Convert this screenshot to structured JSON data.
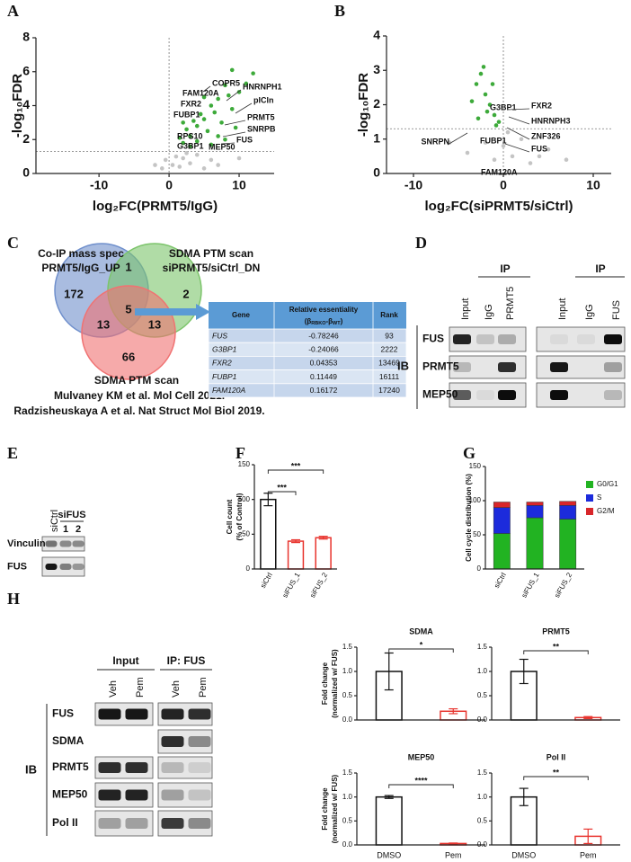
{
  "panel_labels": [
    "A",
    "B",
    "C",
    "D",
    "E",
    "F",
    "G",
    "H"
  ],
  "chart_data": [
    {
      "type": "scatter",
      "xlabel": "log₂FC(PRMT5/IgG)",
      "ylabel": "-log₁₀FDR",
      "xlim": [
        -19,
        15
      ],
      "ylim": [
        0,
        8
      ],
      "xticks": [
        -10,
        0,
        10
      ],
      "yticks": [
        0,
        2,
        4,
        6,
        8
      ],
      "reference_lines": {
        "x": 0,
        "y": 1.3
      },
      "series": [
        {
          "color": "#c4c4c4",
          "x": [
            -1,
            -0.5,
            0.5,
            1,
            1.5,
            2,
            3,
            4,
            5,
            6,
            7,
            10,
            -2,
            2.5
          ],
          "y": [
            0.3,
            0.8,
            0.5,
            1.0,
            0.4,
            0.9,
            0.6,
            1.1,
            0.3,
            0.8,
            0.5,
            0.9,
            0.5,
            1.2
          ]
        },
        {
          "color": "#3daa3a",
          "x": [
            1.5,
            2,
            2.5,
            3,
            3.5,
            4,
            4.5,
            5,
            5.5,
            6,
            6.5,
            7,
            7.5,
            8,
            8.5,
            9,
            9.5,
            10,
            11,
            12,
            3,
            4,
            6,
            7,
            8,
            2,
            5,
            9
          ],
          "y": [
            2.1,
            1.8,
            2.6,
            2.2,
            3.1,
            2.8,
            3.5,
            3.2,
            2.5,
            4.0,
            3.6,
            4.4,
            3.0,
            5.2,
            4.6,
            3.8,
            2.7,
            4.8,
            5.3,
            5.9,
            1.6,
            1.9,
            1.7,
            2.2,
            2.0,
            3.0,
            4.5,
            6.1
          ]
        }
      ],
      "annotations": [
        "COPR5",
        "HNRNPH1",
        "FAM120A",
        "pICln",
        "FXR2",
        "FUBP1",
        "PRMT5",
        "SNRPB",
        "RPS10",
        "FUS",
        "G3BP1",
        "MEP50"
      ]
    },
    {
      "type": "scatter",
      "xlabel": "log₂FC(siPRMT5/siCtrl)",
      "ylabel": "-log₁₀FDR",
      "xlim": [
        -13,
        12
      ],
      "ylim": [
        0,
        4
      ],
      "xticks": [
        -10,
        0,
        10
      ],
      "yticks": [
        0,
        1,
        2,
        3,
        4
      ],
      "reference_lines": {
        "x": 0,
        "y": 1.3
      },
      "series": [
        {
          "color": "#c4c4c4",
          "x": [
            -4,
            -2,
            -1,
            0,
            1,
            2,
            3,
            5,
            -6,
            0.5,
            4,
            7
          ],
          "y": [
            0.6,
            0.9,
            0.4,
            0.8,
            0.5,
            1.0,
            0.3,
            0.7,
            0.9,
            1.2,
            0.5,
            0.4
          ]
        },
        {
          "color": "#3daa3a",
          "x": [
            -3,
            -2.5,
            -2.2,
            -2,
            -1.8,
            -1.5,
            -1,
            -0.5,
            -2.8,
            -3.5,
            -1.2,
            -0.8
          ],
          "y": [
            2.6,
            2.9,
            3.1,
            2.3,
            1.8,
            2.0,
            1.7,
            1.5,
            1.6,
            2.1,
            2.6,
            1.4
          ]
        }
      ],
      "annotations": [
        "SNRPN",
        "G3BP1",
        "FXR2",
        "HNRNPH3",
        "ZNF326",
        "FUBP1",
        "FUS",
        "FAM120A"
      ]
    },
    {
      "type": "bar",
      "ylabel": [
        "Cell count",
        "(% of Control)"
      ],
      "categories": [
        "siCtrl",
        "siFUS_1",
        "siFUS_2"
      ],
      "values": [
        100,
        40,
        45
      ],
      "errors": [
        9,
        2,
        2
      ],
      "colors": [
        "#111111",
        "#e8342e",
        "#e8342e"
      ],
      "ylim": [
        0,
        150
      ],
      "yticks": [
        0,
        50,
        100,
        150
      ],
      "significance": [
        "***",
        "***"
      ]
    },
    {
      "type": "bar",
      "stacked": true,
      "ylabel": "Cell cycle distribution (%)",
      "categories": [
        "siCtrl",
        "siFUS_1",
        "siFUS_2"
      ],
      "series": [
        {
          "name": "G0/G1",
          "color": "#22b322",
          "values": [
            52,
            75,
            73
          ]
        },
        {
          "name": "S",
          "color": "#1c2bdc",
          "values": [
            38,
            18,
            20
          ]
        },
        {
          "name": "G2/M",
          "color": "#d8262a",
          "values": [
            8,
            5,
            6
          ]
        }
      ],
      "ylim": [
        0,
        150
      ],
      "yticks": [
        0,
        50,
        100,
        150
      ],
      "legend": "upper right"
    },
    {
      "type": "bar",
      "title": "SDMA",
      "ylabel": [
        "Fold change",
        "(normalized w/ FUS)"
      ],
      "categories": [
        null,
        null
      ],
      "values": [
        1.0,
        0.18
      ],
      "errors": [
        0.38,
        0.05
      ],
      "colors": [
        "#111111",
        "#e8342e"
      ],
      "ylim": [
        0,
        1.5
      ],
      "yticks": [
        {
          "value": 0,
          "label": "0.0"
        },
        0.5,
        {
          "value": 1,
          "label": "1.0"
        },
        1.5
      ],
      "significance": [
        "*"
      ]
    },
    {
      "type": "bar",
      "title": "PRMT5",
      "categories": [
        null,
        null
      ],
      "values": [
        1.0,
        0.05
      ],
      "errors": [
        0.25,
        0.02
      ],
      "colors": [
        "#111111",
        "#e8342e"
      ],
      "ylim": [
        0,
        1.5
      ],
      "yticks": [
        {
          "value": 0,
          "label": "0.0"
        },
        0.5,
        {
          "value": 1,
          "label": "1.0"
        },
        1.5
      ],
      "significance": [
        "**"
      ]
    },
    {
      "type": "bar",
      "title": "MEP50",
      "ylabel": [
        "Fold change",
        "(normalized w/ FUS)"
      ],
      "categories": [
        "DMSO",
        "Pem"
      ],
      "values": [
        1.0,
        0.03
      ],
      "errors": [
        0.03,
        0.01
      ],
      "colors": [
        "#111111",
        "#e8342e"
      ],
      "ylim": [
        0,
        1.5
      ],
      "yticks": [
        {
          "value": 0,
          "label": "0.0"
        },
        0.5,
        {
          "value": 1,
          "label": "1.0"
        },
        1.5
      ],
      "significance": [
        "****"
      ]
    },
    {
      "type": "bar",
      "title": "Pol II",
      "categories": [
        "DMSO",
        "Pem"
      ],
      "values": [
        1.0,
        0.18
      ],
      "errors": [
        0.18,
        0.15
      ],
      "colors": [
        "#111111",
        "#e8342e"
      ],
      "ylim": [
        0,
        1.5
      ],
      "yticks": [
        {
          "value": 0,
          "label": "0.0"
        },
        0.5,
        {
          "value": 1,
          "label": "1.0"
        },
        1.5
      ],
      "significance": [
        "**"
      ]
    }
  ],
  "venn": {
    "sets": [
      [
        "Co-IP mass spec",
        "PRMT5/IgG_UP"
      ],
      [
        "SDMA PTM scan",
        "siPRMT5/siCtrl_DN"
      ],
      [
        "SDMA PTM scan"
      ]
    ],
    "regions": [
      172,
      1,
      2,
      13,
      5,
      13,
      66
    ],
    "citations": [
      "Mulvaney KM et al. Mol Cell 2021.",
      "Radzisheuskaya A et al. Nat Struct Mol Biol 2019."
    ]
  },
  "table": {
    "header": [
      "Gene",
      "Relative essentiality",
      "Rank"
    ],
    "header_formula": [
      "(β",
      "RBKO",
      "-β",
      "WT",
      ")"
    ],
    "rows": [
      [
        "FUS",
        -0.78246,
        93
      ],
      [
        "G3BP1",
        -0.24066,
        2222
      ],
      [
        "FXR2",
        0.04353,
        13469
      ],
      [
        "FUBP1",
        0.11449,
        16111
      ],
      [
        "FAM120A",
        0.16172,
        17240
      ]
    ]
  },
  "blots": {
    "D": {
      "group_labels": [
        "IP",
        "IP"
      ],
      "lanes": [
        "Input",
        "IgG",
        "PRMT5",
        "Input",
        "IgG",
        "FUS"
      ],
      "side_label": "IB",
      "rows": [
        "FUS",
        "PRMT5",
        "MEP50"
      ]
    },
    "E": {
      "lanes": [
        "siCtrl"
      ],
      "group_label": "siFUS",
      "group_lanes": [
        "1",
        "2"
      ],
      "rows": [
        "Vinculin",
        "FUS"
      ]
    },
    "H": {
      "group_labels": [
        "Input",
        "IP: FUS"
      ],
      "lanes": [
        "Veh",
        "Pem",
        "Veh",
        "Pem"
      ],
      "side_label": "IB",
      "rows": [
        "FUS",
        "SDMA",
        "PRMT5",
        "MEP50",
        "Pol II"
      ]
    }
  }
}
